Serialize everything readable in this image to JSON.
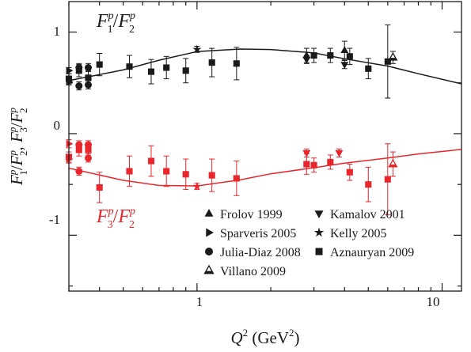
{
  "chart_data": {
    "type": "scatter",
    "x_scale": "log",
    "xlim": [
      0.3,
      12
    ],
    "ylim": [
      -1.55,
      1.3
    ],
    "x_ticks": [
      1,
      10
    ],
    "x_tick_labels": [
      "1",
      "10"
    ],
    "y_ticks": [
      1,
      0,
      -1
    ],
    "y_tick_labels": [
      "1",
      "0",
      "-1"
    ],
    "grid": false,
    "legend_position": "bottom-right",
    "xlabel": {
      "main": "Q",
      "sup": "2",
      "unit_open": " (GeV",
      "unit_sup": "2",
      "unit_close": ")"
    },
    "ylabel": {
      "f1": "F",
      "p": "p",
      "one": "1",
      "two": "2",
      "three": "3",
      "sep": "/",
      "comma": ", "
    },
    "annotations": {
      "black": {
        "num": "F",
        "num_sub": "1",
        "sup": "p",
        "slash": "/",
        "den": "F",
        "den_sub": "2",
        "den_sup": "p",
        "color": "#1a1a1a"
      },
      "red": {
        "num": "F",
        "num_sub": "3",
        "sup": "p",
        "slash": "/",
        "den": "F",
        "den_sub": "2",
        "den_sup": "p",
        "color": "#e8262b"
      }
    },
    "colors": {
      "black": "#1a1a1a",
      "red": "#e8262b"
    },
    "legend": [
      {
        "marker": "triangle-up",
        "label": "Frolov 1999"
      },
      {
        "marker": "triangle-down",
        "label": "Kamalov 2001"
      },
      {
        "marker": "triangle-right",
        "label": "Sparveris 2005"
      },
      {
        "marker": "star",
        "label": "Kelly 2005"
      },
      {
        "marker": "circle",
        "label": "Julia-Diaz 2008"
      },
      {
        "marker": "square",
        "label": "Aznauryan 2009"
      },
      {
        "marker": "triangle-open",
        "label": "Villano 2009"
      }
    ],
    "curves": [
      {
        "color": "black",
        "points": [
          [
            0.3,
            0.522
          ],
          [
            0.5,
            0.627
          ],
          [
            0.7,
            0.723
          ],
          [
            1.0,
            0.808
          ],
          [
            1.5,
            0.833
          ],
          [
            2.0,
            0.828
          ],
          [
            3.0,
            0.795
          ],
          [
            4.0,
            0.737
          ],
          [
            6.0,
            0.665
          ],
          [
            8.0,
            0.59
          ],
          [
            12.0,
            0.49
          ]
        ]
      },
      {
        "color": "red",
        "points": [
          [
            0.3,
            -0.34
          ],
          [
            0.5,
            -0.46
          ],
          [
            0.7,
            -0.51
          ],
          [
            1.0,
            -0.515
          ],
          [
            1.5,
            -0.455
          ],
          [
            2.0,
            -0.395
          ],
          [
            3.0,
            -0.335
          ],
          [
            4.0,
            -0.29
          ],
          [
            6.0,
            -0.24
          ],
          [
            8.0,
            -0.2
          ],
          [
            12.0,
            -0.155
          ]
        ]
      }
    ],
    "series": [
      {
        "name": "Frolov 1999",
        "marker": "triangle-up",
        "color": "black",
        "points": [
          {
            "x": 2.8,
            "y": 0.77,
            "err": 0.07
          },
          {
            "x": 4.0,
            "y": 0.82,
            "err": 0.09
          }
        ]
      },
      {
        "name": "Kamalov 2001",
        "marker": "triangle-down",
        "color": "black",
        "points": [
          {
            "x": 2.8,
            "y": 0.73,
            "err": 0.04
          },
          {
            "x": 4.0,
            "y": 0.68,
            "err": 0.04
          }
        ]
      },
      {
        "name": "Kamalov 2001",
        "marker": "triangle-down",
        "color": "red",
        "points": [
          {
            "x": 2.8,
            "y": -0.19,
            "err": 0.04
          },
          {
            "x": 3.8,
            "y": -0.19,
            "err": 0.04
          }
        ]
      },
      {
        "name": "Sparveris 2005",
        "marker": "triangle-right",
        "color": "black",
        "points": [
          {
            "x": 0.3,
            "y": 0.62,
            "err": 0.03
          },
          {
            "x": 0.3,
            "y": 0.51,
            "err": 0.03
          }
        ]
      },
      {
        "name": "Sparveris 2005",
        "marker": "triangle-right",
        "color": "red",
        "points": [
          {
            "x": 0.3,
            "y": -0.1,
            "err": 0.04
          },
          {
            "x": 0.3,
            "y": -0.25,
            "err": 0.04
          }
        ]
      },
      {
        "name": "Kelly 2005",
        "marker": "star",
        "color": "black",
        "points": [
          {
            "x": 1.0,
            "y": 0.83,
            "err": 0.03
          }
        ]
      },
      {
        "name": "Kelly 2005",
        "marker": "star",
        "color": "red",
        "points": [
          {
            "x": 1.0,
            "y": -0.52,
            "err": 0.03
          }
        ]
      },
      {
        "name": "Julia-Diaz 2008",
        "marker": "circle",
        "color": "black",
        "points": [
          {
            "x": 0.33,
            "y": 0.65,
            "err": 0.04
          },
          {
            "x": 0.33,
            "y": 0.47,
            "err": 0.04
          },
          {
            "x": 0.36,
            "y": 0.65,
            "err": 0.04
          },
          {
            "x": 0.36,
            "y": 0.48,
            "err": 0.04
          }
        ]
      },
      {
        "name": "Julia-Diaz 2008",
        "marker": "circle",
        "color": "red",
        "points": [
          {
            "x": 0.33,
            "y": -0.11,
            "err": 0.04
          },
          {
            "x": 0.33,
            "y": -0.37,
            "err": 0.04
          },
          {
            "x": 0.36,
            "y": -0.11,
            "err": 0.04
          },
          {
            "x": 0.36,
            "y": -0.24,
            "err": 0.04
          }
        ]
      },
      {
        "name": "Villano 2009",
        "marker": "triangle-open",
        "color": "black",
        "points": [
          {
            "x": 6.3,
            "y": 0.75,
            "err": 0.06
          }
        ]
      },
      {
        "name": "Villano 2009",
        "marker": "triangle-open",
        "color": "red",
        "points": [
          {
            "x": 6.3,
            "y": -0.3,
            "err": 0.12
          }
        ]
      },
      {
        "name": "Aznauryan 2009",
        "marker": "square",
        "color": "black",
        "points": [
          {
            "x": 0.3,
            "y": 0.54,
            "err": 0.05
          },
          {
            "x": 0.33,
            "y": 0.62,
            "err": 0.06
          },
          {
            "x": 0.36,
            "y": 0.55,
            "err": 0.07
          },
          {
            "x": 0.4,
            "y": 0.68,
            "err": 0.11
          },
          {
            "x": 0.53,
            "y": 0.66,
            "err": 0.11
          },
          {
            "x": 0.65,
            "y": 0.61,
            "err": 0.12
          },
          {
            "x": 0.75,
            "y": 0.65,
            "err": 0.11
          },
          {
            "x": 0.9,
            "y": 0.62,
            "err": 0.12
          },
          {
            "x": 1.15,
            "y": 0.7,
            "err": 0.14
          },
          {
            "x": 1.45,
            "y": 0.69,
            "err": 0.16
          },
          {
            "x": 3.0,
            "y": 0.77,
            "err": 0.07
          },
          {
            "x": 3.5,
            "y": 0.77,
            "err": 0.07
          },
          {
            "x": 4.2,
            "y": 0.76,
            "err": 0.08
          },
          {
            "x": 5.0,
            "y": 0.64,
            "err": 0.1
          },
          {
            "x": 6.0,
            "y": 0.71,
            "err": 0.36
          }
        ]
      },
      {
        "name": "Aznauryan 2009",
        "marker": "square",
        "color": "red",
        "points": [
          {
            "x": 0.3,
            "y": -0.23,
            "err": 0.05
          },
          {
            "x": 0.33,
            "y": -0.16,
            "err": 0.06
          },
          {
            "x": 0.36,
            "y": -0.16,
            "err": 0.06
          },
          {
            "x": 0.4,
            "y": -0.53,
            "err": 0.15
          },
          {
            "x": 0.53,
            "y": -0.37,
            "err": 0.15
          },
          {
            "x": 0.65,
            "y": -0.27,
            "err": 0.15
          },
          {
            "x": 0.75,
            "y": -0.37,
            "err": 0.15
          },
          {
            "x": 0.9,
            "y": -0.4,
            "err": 0.15
          },
          {
            "x": 1.15,
            "y": -0.41,
            "err": 0.16
          },
          {
            "x": 1.45,
            "y": -0.44,
            "err": 0.17
          },
          {
            "x": 2.8,
            "y": -0.3,
            "err": 0.1
          },
          {
            "x": 3.0,
            "y": -0.31,
            "err": 0.07
          },
          {
            "x": 3.5,
            "y": -0.28,
            "err": 0.07
          },
          {
            "x": 4.2,
            "y": -0.38,
            "err": 0.08
          },
          {
            "x": 5.0,
            "y": -0.5,
            "err": 0.17
          },
          {
            "x": 6.0,
            "y": -0.45,
            "err": 0.35
          }
        ]
      }
    ]
  }
}
